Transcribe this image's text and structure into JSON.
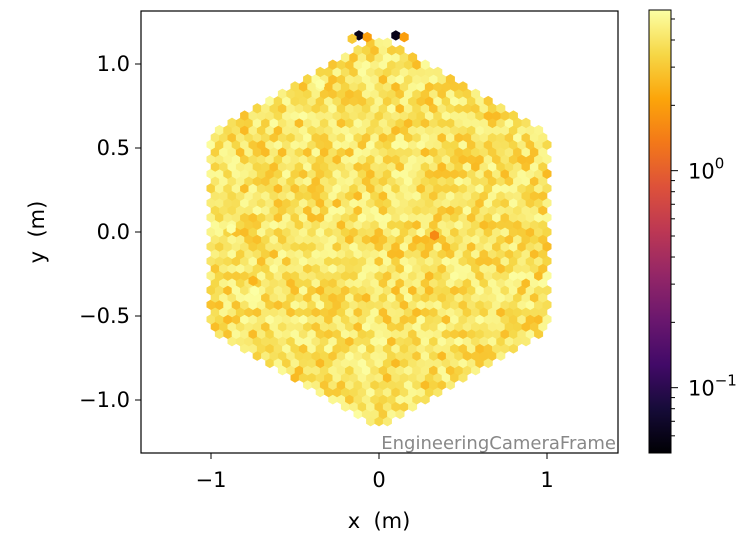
{
  "chart_data": {
    "type": "heatmap",
    "title": "",
    "xlabel": "x  (m)",
    "ylabel": "y  (m)",
    "xlim": [
      -1.4,
      1.4
    ],
    "ylim": [
      -1.32,
      1.32
    ],
    "xticks": [
      {
        "value": -1,
        "label": "−1"
      },
      {
        "value": 0,
        "label": "0"
      },
      {
        "value": 1,
        "label": "1"
      }
    ],
    "yticks": [
      {
        "value": 1.0,
        "label": "1.0"
      },
      {
        "value": 0.5,
        "label": "0.5"
      },
      {
        "value": 0.0,
        "label": "0.0"
      },
      {
        "value": -0.5,
        "label": "−0.5"
      },
      {
        "value": -1.0,
        "label": "−1.0"
      }
    ],
    "annotation": "EngineeringCameraFrame",
    "camera": {
      "shape": "hexagon",
      "corner_radius_m": 1.18,
      "pixel_pitch_m": 0.05,
      "typical_value": 4.0,
      "value_spread": 0.7
    },
    "outliers": [
      {
        "x": -0.12,
        "y": 1.17,
        "value": 0.06
      },
      {
        "x": -0.07,
        "y": 1.16,
        "value": 2.0
      },
      {
        "x": 0.1,
        "y": 1.17,
        "value": 0.06
      },
      {
        "x": 0.15,
        "y": 1.16,
        "value": 2.0
      },
      {
        "x": -0.16,
        "y": 1.15,
        "value": 3.0
      },
      {
        "x": 0.33,
        "y": -0.02,
        "value": 1.6
      },
      {
        "x": -0.75,
        "y": -0.29,
        "value": 2.5
      },
      {
        "x": -0.74,
        "y": -0.35,
        "value": 6.0
      },
      {
        "x": -0.88,
        "y": 0.02,
        "value": 6.0
      },
      {
        "x": -0.35,
        "y": 0.88,
        "value": 6.0
      }
    ],
    "colorbar": {
      "colormap": "inferno",
      "scale": "log",
      "range": [
        0.05,
        5.5
      ],
      "major_ticks": [
        {
          "value": 1,
          "base": "10",
          "exp": "0"
        },
        {
          "value": 0.1,
          "base": "10",
          "exp": "−1"
        }
      ],
      "minor_ticks": [
        0.06,
        0.07,
        0.08,
        0.09,
        0.2,
        0.3,
        0.4,
        0.5,
        0.6,
        0.7,
        0.8,
        0.9,
        2,
        3,
        4,
        5
      ]
    }
  }
}
